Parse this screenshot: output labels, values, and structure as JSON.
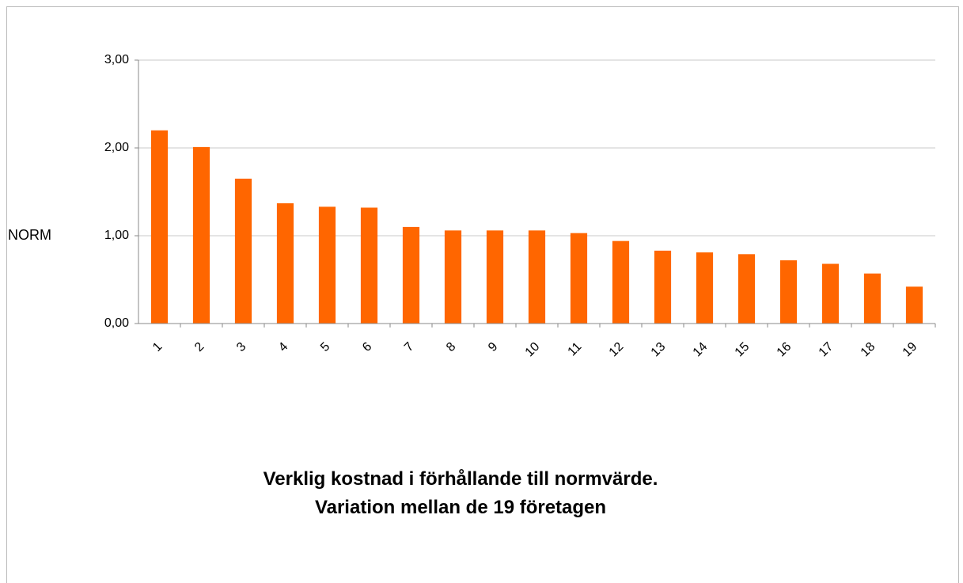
{
  "chart_data": {
    "type": "bar",
    "title": [
      "Verklig kostnad i förhållande till normvärde.",
      "Variation mellan de 19 företagen"
    ],
    "ylabel": "NORM",
    "categories": [
      "1",
      "2",
      "3",
      "4",
      "5",
      "6",
      "7",
      "8",
      "9",
      "10",
      "11",
      "12",
      "13",
      "14",
      "15",
      "16",
      "17",
      "18",
      "19"
    ],
    "values": [
      2.2,
      2.01,
      1.65,
      1.37,
      1.33,
      1.32,
      1.1,
      1.06,
      1.06,
      1.06,
      1.03,
      0.94,
      0.83,
      0.81,
      0.79,
      0.72,
      0.68,
      0.57,
      0.42
    ],
    "color": "#ff6600",
    "ylim": [
      0,
      3
    ],
    "yticks": [
      {
        "value": 0,
        "label": "0,00"
      },
      {
        "value": 1,
        "label": "1,00"
      },
      {
        "value": 2,
        "label": "2,00"
      },
      {
        "value": 3,
        "label": "3,00"
      }
    ],
    "grid": true
  }
}
